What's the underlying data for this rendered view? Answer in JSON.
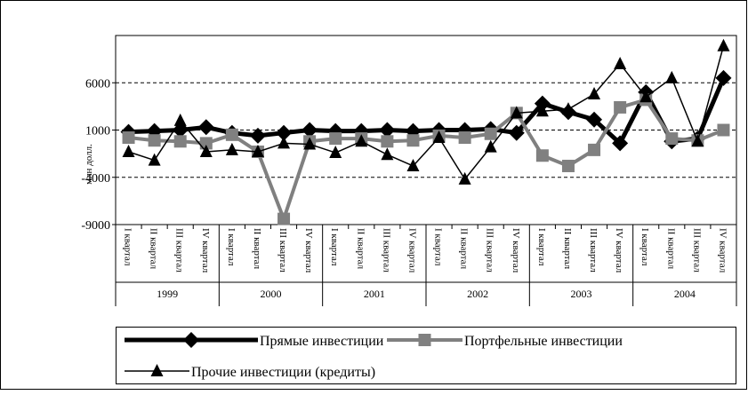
{
  "chart_data": {
    "type": "line",
    "y_label": "млн долл.",
    "categories": [
      "I квартал",
      "II квартал",
      "III квартал",
      "IV квартал",
      "I квартал",
      "II квартал",
      "III квартал",
      "IV квартал",
      "I квартал",
      "II квартал",
      "III квартал",
      "IV квартал",
      "I квартал",
      "II квартал",
      "III квартал",
      "IV квартал",
      "I квартал",
      "II квартал",
      "III квартал",
      "IV квартал",
      "I квартал",
      "II квартал",
      "III квартал",
      "IV квартал"
    ],
    "years": [
      "1999",
      "2000",
      "2001",
      "2002",
      "2003",
      "2004"
    ],
    "series": [
      {
        "name": "Прямые инвестиции",
        "color": "#000000",
        "line_width": 5,
        "marker": "diamond",
        "values": [
          800,
          900,
          1000,
          1300,
          700,
          400,
          700,
          1000,
          900,
          900,
          1000,
          900,
          1000,
          1000,
          1100,
          700,
          3800,
          2900,
          2100,
          -400,
          5000,
          -200,
          100,
          6500
        ]
      },
      {
        "name": "Портфельные инвестиции",
        "color": "#808080",
        "line_width": 4,
        "marker": "square",
        "values": [
          200,
          -100,
          -200,
          -400,
          500,
          -1300,
          -8400,
          -200,
          100,
          100,
          -200,
          -100,
          400,
          200,
          600,
          2800,
          -1700,
          -2800,
          -1100,
          3400,
          4200,
          100,
          -100,
          1000
        ]
      },
      {
        "name": "Прочие инвестиции (кредиты)",
        "color": "#000000",
        "line_width": 1.5,
        "marker": "triangle",
        "values": [
          -1300,
          -2200,
          2000,
          -1300,
          -1100,
          -1300,
          -400,
          -500,
          -1400,
          -200,
          -1600,
          -2800,
          200,
          -4200,
          -800,
          2800,
          3000,
          3200,
          4800,
          8000,
          4500,
          6500,
          -200,
          9900
        ]
      }
    ],
    "ylim": [
      -9000,
      11000
    ],
    "yticks": [
      -9000,
      -4000,
      1000,
      6000
    ],
    "grid": true
  }
}
